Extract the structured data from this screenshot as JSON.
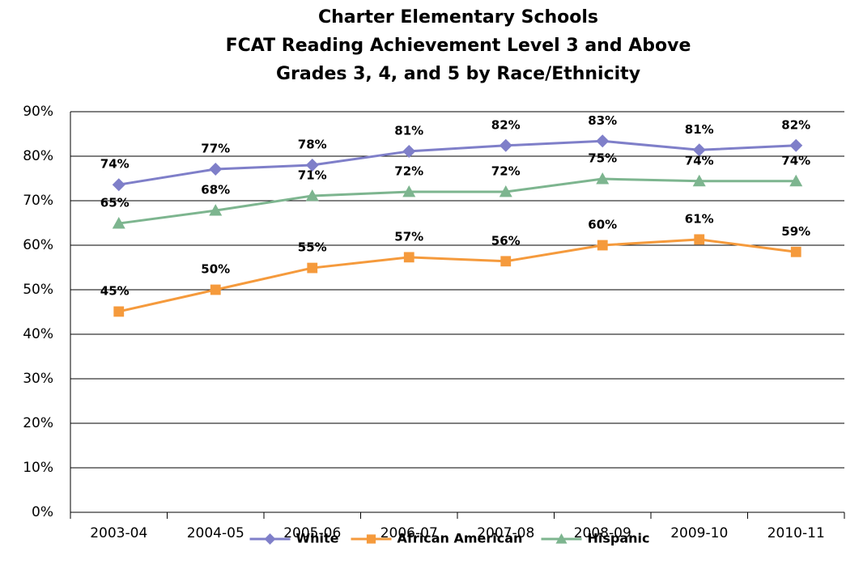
{
  "chart_data": {
    "type": "line",
    "title": [
      "Charter Elementary Schools",
      "FCAT Reading Achievement Level 3 and Above",
      "Grades 3, 4, and 5 by Race/Ethnicity"
    ],
    "categories": [
      "2003-04",
      "2004-05",
      "2005-06",
      "2006-07",
      "2007-08",
      "2008-09",
      "2009-10",
      "2010-11"
    ],
    "series": [
      {
        "name": "White",
        "color": "#7f7fc9",
        "marker": "diamond",
        "values": [
          73.6,
          77.1,
          78,
          81.1,
          82.4,
          83.4,
          81.4,
          82.4
        ],
        "value_labels": [
          "74%",
          "77%",
          "78%",
          "81%",
          "82%",
          "83%",
          "81%",
          "82%"
        ]
      },
      {
        "name": "African American",
        "color": "#f59a3c",
        "marker": "square",
        "values": [
          45.1,
          50,
          54.9,
          57.3,
          56.4,
          60,
          61.3,
          58.5
        ],
        "value_labels": [
          "45%",
          "50%",
          "55%",
          "57%",
          "56%",
          "60%",
          "61%",
          "59%"
        ]
      },
      {
        "name": "Hispanic",
        "color": "#7db58f",
        "marker": "triangle",
        "values": [
          64.9,
          67.8,
          71.1,
          72,
          72,
          74.9,
          74.4,
          74.4
        ],
        "value_labels": [
          "65%",
          "68%",
          "71%",
          "72%",
          "72%",
          "75%",
          "74%",
          "74%"
        ]
      }
    ],
    "ylim": [
      0,
      90
    ],
    "yticks": [
      {
        "value": 0,
        "label": "0%"
      },
      {
        "value": 10,
        "label": "10%"
      },
      {
        "value": 20,
        "label": "20%"
      },
      {
        "value": 30,
        "label": "30%"
      },
      {
        "value": 40,
        "label": "40%"
      },
      {
        "value": 50,
        "label": "50%"
      },
      {
        "value": 60,
        "label": "60%"
      },
      {
        "value": 70,
        "label": "70%"
      },
      {
        "value": 80,
        "label": "80%"
      },
      {
        "value": 90,
        "label": "90%"
      }
    ],
    "grid": true,
    "legend": "bottom"
  }
}
